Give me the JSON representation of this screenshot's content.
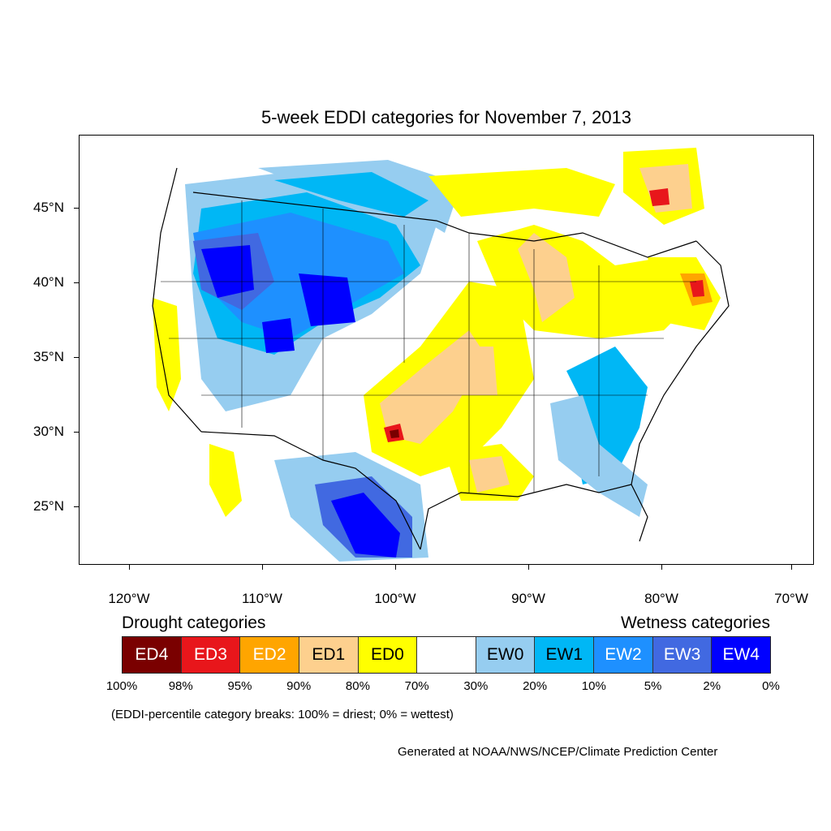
{
  "title": "5-week EDDI categories for November 7, 2013",
  "map": {
    "lat_labels": [
      "45°N",
      "40°N",
      "35°N",
      "30°N",
      "25°N"
    ],
    "lon_labels": [
      "120°W",
      "110°W",
      "100°W",
      "90°W",
      "80°W",
      "70°W"
    ]
  },
  "legend": {
    "drought_heading": "Drought categories",
    "wetness_heading": "Wetness categories",
    "categories": [
      {
        "label": "ED4",
        "color": "#7a0000",
        "text_color": "#ffffff"
      },
      {
        "label": "ED3",
        "color": "#e8161b",
        "text_color": "#ffffff"
      },
      {
        "label": "ED2",
        "color": "#ffa500",
        "text_color": "#ffffff"
      },
      {
        "label": "ED1",
        "color": "#fdd08e",
        "text_color": "#000000"
      },
      {
        "label": "ED0",
        "color": "#ffff00",
        "text_color": "#000000"
      },
      {
        "label": "",
        "color": "#ffffff",
        "text_color": "#000000"
      },
      {
        "label": "EW0",
        "color": "#96cdf0",
        "text_color": "#000000"
      },
      {
        "label": "EW1",
        "color": "#00b7f5",
        "text_color": "#000000"
      },
      {
        "label": "EW2",
        "color": "#1e90ff",
        "text_color": "#ffffff"
      },
      {
        "label": "EW3",
        "color": "#4169e1",
        "text_color": "#ffffff"
      },
      {
        "label": "EW4",
        "color": "#0000ff",
        "text_color": "#ffffff"
      }
    ],
    "breaks": [
      "100%",
      "98%",
      "95%",
      "90%",
      "80%",
      "70%",
      "30%",
      "20%",
      "10%",
      "5%",
      "2%",
      "0%"
    ]
  },
  "note": "(EDDI-percentile category breaks: 100% = driest; 0% = wettest)",
  "credit": "Generated at NOAA/NWS/NCEP/Climate Prediction Center"
}
